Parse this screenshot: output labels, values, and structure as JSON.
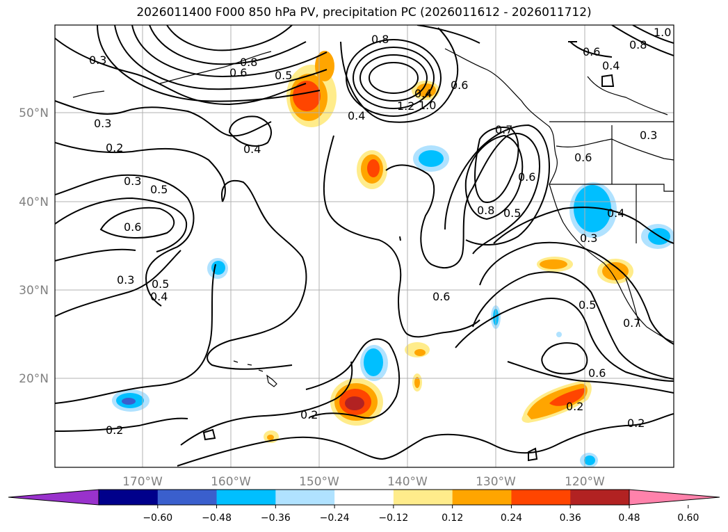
{
  "title": "2026011400 F000 850 hPa PV, precipitation PC (2026011612 - 2026011712)",
  "lon_ticks": [
    "170°W",
    "160°W",
    "150°W",
    "140°W",
    "130°W",
    "120°W"
  ],
  "lat_ticks": [
    "50°N",
    "40°N",
    "30°N",
    "20°N"
  ],
  "contour_labels": [
    "0.3",
    "0.3",
    "0.2",
    "0.3",
    "0.5",
    "0.6",
    "0.3",
    "0.5",
    "0.4",
    "0.4",
    "0.5",
    "0.6",
    "0.8",
    "1.2",
    "1.0",
    "0.4",
    "0.6",
    "0.4",
    "0.7",
    "0.6",
    "0.8",
    "0.5",
    "0.6",
    "0.8",
    "0.4",
    "0.6",
    "0.3",
    "0.6",
    "0.4",
    "0.3",
    "0.5",
    "0.7",
    "0.6",
    "0.2",
    "0.2",
    "0.2",
    "0.2",
    "0.8",
    "1.0"
  ],
  "colorbar": {
    "ticks": [
      "−0.60",
      "−0.48",
      "−0.36",
      "−0.24",
      "−0.12",
      "0.12",
      "0.24",
      "0.36",
      "0.48",
      "0.60"
    ],
    "colors": [
      "#9932cc",
      "#00008b",
      "#3a5fcd",
      "#00bfff",
      "#b0e2ff",
      "#ffffff",
      "#ffec8b",
      "#ffa500",
      "#ff4500",
      "#b22222",
      "#ff82ab"
    ]
  }
}
